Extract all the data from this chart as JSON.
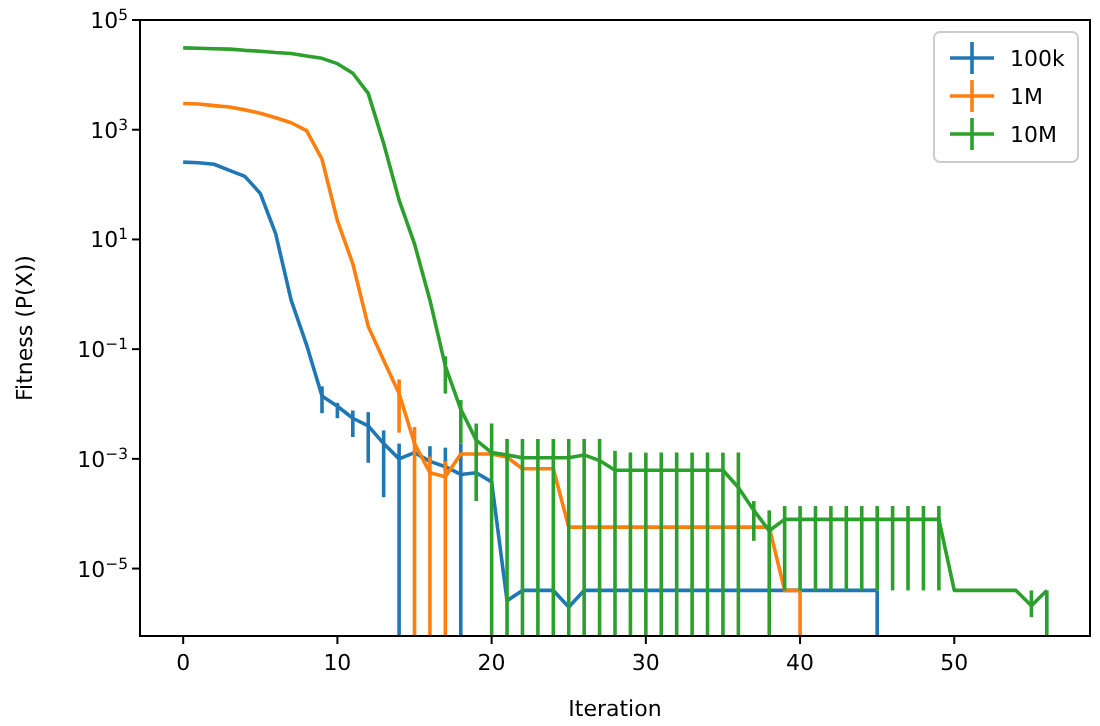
{
  "chart_data": {
    "type": "line",
    "xlabel": "Iteration",
    "ylabel": "Fitness (P(X))",
    "log": "y",
    "legend": "top right",
    "xlim": [
      -2.8,
      58.8
    ],
    "xticks": [
      0,
      10,
      20,
      30,
      40,
      50
    ],
    "ylim": [
      5.9e-07,
      100000
    ],
    "yticks": [
      {
        "value": 1e-05,
        "label": "10$^{−5}$"
      },
      {
        "value": 0.001,
        "label": "10$^{−3}$"
      },
      {
        "value": 0.1,
        "label": "10$^{−1}$"
      },
      {
        "value": 10,
        "label": "10$^{1}$"
      },
      {
        "value": 1000,
        "label": "10$^{3}$"
      },
      {
        "value": 100000,
        "label": "10$^{5}$"
      }
    ],
    "series": [
      {
        "name": "100k",
        "color": "#1f77b4",
        "x": [
          0,
          1,
          2,
          3,
          4,
          5,
          6,
          7,
          8,
          9,
          10,
          11,
          12,
          13,
          14,
          15,
          16,
          17,
          18,
          19,
          20,
          21,
          22,
          23,
          24,
          25,
          26,
          27,
          28,
          29,
          30,
          31,
          32,
          33,
          34,
          35,
          36,
          37,
          38,
          39,
          40,
          41,
          42,
          43,
          44,
          45
        ],
        "values": [
          257,
          250,
          235,
          182,
          141,
          69,
          12.6,
          0.78,
          0.12,
          0.014,
          0.0091,
          0.0055,
          0.004,
          0.0019,
          0.001,
          0.0013,
          0.0009,
          0.00072,
          0.00052,
          0.00056,
          0.00038,
          2.6e-06,
          4e-06,
          4e-06,
          4e-06,
          2e-06,
          4e-06,
          4e-06,
          4e-06,
          4e-06,
          4e-06,
          4e-06,
          4e-06,
          4e-06,
          4e-06,
          4e-06,
          4e-06,
          4e-06,
          4e-06,
          4e-06,
          4e-06,
          4e-06,
          4e-06,
          4e-06,
          4e-06,
          4e-06
        ],
        "errors": [
          null,
          null,
          null,
          null,
          null,
          null,
          null,
          null,
          null,
          [
            0.0068,
            0.021
          ],
          [
            0.0055,
            0.0105
          ],
          [
            0.0025,
            0.0076
          ],
          [
            0.00085,
            0.0071
          ],
          [
            0.0002,
            0.0033
          ],
          [
            5.9e-07,
            0.0019
          ],
          null,
          [
            0.0008,
            0.0017
          ],
          [
            0.0006,
            0.0016
          ],
          [
            5.9e-07,
            0.0019
          ],
          null,
          null,
          null,
          null,
          null,
          null,
          null,
          null,
          null,
          null,
          null,
          null,
          null,
          null,
          null,
          null,
          null,
          null,
          null,
          null,
          null,
          null,
          null,
          null,
          null,
          null,
          [
            5.9e-07,
            4e-06
          ]
        ]
      },
      {
        "name": "1M",
        "color": "#ff7f0e",
        "x": [
          0,
          1,
          2,
          3,
          4,
          5,
          6,
          7,
          8,
          9,
          10,
          11,
          12,
          13,
          14,
          15,
          16,
          17,
          18,
          19,
          20,
          21,
          22,
          23,
          24,
          25,
          26,
          27,
          28,
          29,
          30,
          31,
          32,
          33,
          34,
          35,
          36,
          37,
          38,
          39,
          40
        ],
        "values": [
          3000,
          2950,
          2750,
          2600,
          2300,
          2000,
          1650,
          1340,
          960,
          290,
          22,
          3.6,
          0.26,
          0.063,
          0.0155,
          0.0019,
          0.00056,
          0.00047,
          0.00123,
          0.00123,
          0.00123,
          0.00107,
          0.00066,
          0.00066,
          0.00066,
          5.7e-05,
          5.7e-05,
          5.7e-05,
          5.7e-05,
          5.7e-05,
          5.7e-05,
          5.7e-05,
          5.7e-05,
          5.7e-05,
          5.7e-05,
          5.7e-05,
          5.7e-05,
          5.7e-05,
          5.7e-05,
          4e-06,
          4e-06
        ],
        "errors": [
          null,
          null,
          null,
          null,
          null,
          null,
          null,
          null,
          null,
          null,
          null,
          null,
          null,
          null,
          [
            0.003,
            0.028
          ],
          [
            5.9e-07,
            0.0038
          ],
          [
            5.9e-07,
            0.0011
          ],
          [
            5.9e-07,
            0.0009
          ],
          null,
          null,
          null,
          null,
          null,
          null,
          null,
          null,
          null,
          null,
          null,
          null,
          null,
          null,
          null,
          null,
          null,
          null,
          null,
          null,
          null,
          null,
          [
            5.9e-07,
            4e-06
          ]
        ]
      },
      {
        "name": "10M",
        "color": "#2ca02c",
        "x": [
          0,
          1,
          2,
          3,
          4,
          5,
          6,
          7,
          8,
          9,
          10,
          11,
          12,
          13,
          14,
          15,
          16,
          17,
          18,
          19,
          20,
          21,
          22,
          23,
          24,
          25,
          26,
          27,
          28,
          29,
          30,
          31,
          32,
          33,
          34,
          35,
          36,
          37,
          38,
          39,
          40,
          41,
          42,
          43,
          44,
          45,
          46,
          47,
          48,
          49,
          50,
          51,
          52,
          53,
          54,
          55,
          56
        ],
        "values": [
          31000,
          30500,
          30000,
          29500,
          28000,
          27000,
          25500,
          24500,
          22000,
          20000,
          16000,
          10700,
          4600,
          560,
          52,
          8.3,
          0.78,
          0.049,
          0.008,
          0.0022,
          0.0013,
          0.00118,
          0.00105,
          0.00105,
          0.00105,
          0.00105,
          0.00118,
          0.00093,
          0.00062,
          0.00062,
          0.00062,
          0.00062,
          0.00062,
          0.00062,
          0.00062,
          0.00062,
          0.0003,
          0.000115,
          4.9e-05,
          7.9e-05,
          7.9e-05,
          7.9e-05,
          7.9e-05,
          7.9e-05,
          7.9e-05,
          7.9e-05,
          7.9e-05,
          7.9e-05,
          7.9e-05,
          7.9e-05,
          4e-06,
          4e-06,
          4e-06,
          4e-06,
          4e-06,
          2.1e-06,
          4e-06
        ],
        "errors": [
          null,
          null,
          null,
          null,
          null,
          null,
          null,
          null,
          null,
          null,
          null,
          null,
          null,
          null,
          null,
          null,
          null,
          [
            0.0155,
            0.074
          ],
          [
            0.0019,
            0.0118
          ],
          [
            0.00017,
            0.0044
          ],
          [
            5.9e-07,
            0.0044
          ],
          [
            5.9e-07,
            0.0023
          ],
          [
            5.9e-07,
            0.0023
          ],
          [
            5.9e-07,
            0.0023
          ],
          [
            5.9e-07,
            0.0023
          ],
          [
            5.9e-07,
            0.0023
          ],
          [
            5.9e-07,
            0.0023
          ],
          [
            5.9e-07,
            0.0023
          ],
          [
            5.9e-07,
            0.0014
          ],
          [
            5.9e-07,
            0.0013
          ],
          [
            5.9e-07,
            0.0013
          ],
          [
            5.9e-07,
            0.0013
          ],
          [
            5.9e-07,
            0.0013
          ],
          [
            5.9e-07,
            0.0013
          ],
          [
            5.9e-07,
            0.0013
          ],
          [
            5.9e-07,
            0.0013
          ],
          [
            5.9e-07,
            0.0013
          ],
          [
            3.2e-05,
            0.00017
          ],
          [
            5.9e-07,
            0.000115
          ],
          [
            4e-06,
            0.000138
          ],
          [
            4e-06,
            0.000138
          ],
          [
            4e-06,
            0.000138
          ],
          [
            4e-06,
            0.000138
          ],
          [
            4e-06,
            0.000138
          ],
          [
            4e-06,
            0.000138
          ],
          [
            4e-06,
            0.000138
          ],
          [
            4e-06,
            0.000138
          ],
          [
            4e-06,
            0.000138
          ],
          [
            4e-06,
            0.000138
          ],
          [
            4e-06,
            0.000138
          ],
          null,
          null,
          null,
          null,
          null,
          [
            1.3e-06,
            4e-06
          ],
          [
            5.9e-07,
            4e-06
          ]
        ]
      }
    ]
  }
}
